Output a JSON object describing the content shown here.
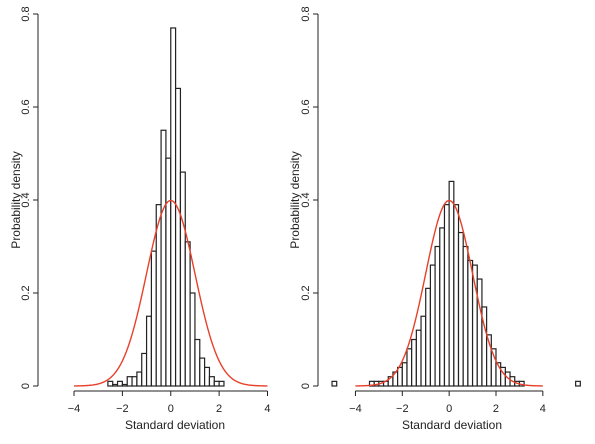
{
  "chart_data": [
    {
      "type": "bar",
      "xlabel": "Standard deviation",
      "ylabel": "Probability density",
      "xlim": [
        -5.2,
        4.6
      ],
      "ylim": [
        0,
        0.8
      ],
      "xticks": [
        -4,
        -2,
        0,
        2,
        4
      ],
      "yticks": [
        0,
        0.2,
        0.4,
        0.6,
        0.8
      ],
      "bin_width": 0.2,
      "bins": [
        {
          "x0": -2.6,
          "density": 0.01
        },
        {
          "x0": -2.4,
          "density": 0.0
        },
        {
          "x0": -2.2,
          "density": 0.01
        },
        {
          "x0": -2.0,
          "density": 0.0
        },
        {
          "x0": -1.8,
          "density": 0.02
        },
        {
          "x0": -1.6,
          "density": 0.02
        },
        {
          "x0": -1.4,
          "density": 0.03
        },
        {
          "x0": -1.2,
          "density": 0.07
        },
        {
          "x0": -1.0,
          "density": 0.15
        },
        {
          "x0": -0.8,
          "density": 0.29
        },
        {
          "x0": -0.6,
          "density": 0.39
        },
        {
          "x0": -0.4,
          "density": 0.55
        },
        {
          "x0": -0.2,
          "density": 0.49
        },
        {
          "x0": 0.0,
          "density": 0.77
        },
        {
          "x0": 0.2,
          "density": 0.64
        },
        {
          "x0": 0.4,
          "density": 0.46
        },
        {
          "x0": 0.6,
          "density": 0.31
        },
        {
          "x0": 0.8,
          "density": 0.2
        },
        {
          "x0": 1.0,
          "density": 0.1
        },
        {
          "x0": 1.2,
          "density": 0.06
        },
        {
          "x0": 1.4,
          "density": 0.04
        },
        {
          "x0": 1.6,
          "density": 0.02
        },
        {
          "x0": 1.8,
          "density": 0.01
        },
        {
          "x0": 2.0,
          "density": 0.01
        }
      ],
      "curve": {
        "type": "normal",
        "mean": 0,
        "sd": 1,
        "x_range": [
          -4,
          4
        ],
        "color": "#e8402a"
      }
    },
    {
      "type": "bar",
      "xlabel": "Standard deviation",
      "ylabel": "Probability density",
      "xlim": [
        -5.3,
        5.8
      ],
      "ylim": [
        0,
        0.8
      ],
      "xticks": [
        -4,
        -2,
        0,
        2,
        4
      ],
      "yticks": [
        0,
        0.2,
        0.4,
        0.6,
        0.8
      ],
      "bin_width": 0.2,
      "bins": [
        {
          "x0": -5.0,
          "density": 0.01
        },
        {
          "x0": -3.4,
          "density": 0.01
        },
        {
          "x0": -3.2,
          "density": 0.01
        },
        {
          "x0": -3.0,
          "density": 0.01
        },
        {
          "x0": -2.8,
          "density": 0.01
        },
        {
          "x0": -2.6,
          "density": 0.02
        },
        {
          "x0": -2.4,
          "density": 0.03
        },
        {
          "x0": -2.2,
          "density": 0.04
        },
        {
          "x0": -2.0,
          "density": 0.05
        },
        {
          "x0": -1.8,
          "density": 0.08
        },
        {
          "x0": -1.6,
          "density": 0.1
        },
        {
          "x0": -1.4,
          "density": 0.12
        },
        {
          "x0": -1.2,
          "density": 0.15
        },
        {
          "x0": -1.0,
          "density": 0.21
        },
        {
          "x0": -0.8,
          "density": 0.26
        },
        {
          "x0": -0.6,
          "density": 0.3
        },
        {
          "x0": -0.4,
          "density": 0.34
        },
        {
          "x0": -0.2,
          "density": 0.39
        },
        {
          "x0": 0.0,
          "density": 0.44
        },
        {
          "x0": 0.2,
          "density": 0.39
        },
        {
          "x0": 0.4,
          "density": 0.33
        },
        {
          "x0": 0.6,
          "density": 0.3
        },
        {
          "x0": 0.8,
          "density": 0.27
        },
        {
          "x0": 1.0,
          "density": 0.26
        },
        {
          "x0": 1.2,
          "density": 0.23
        },
        {
          "x0": 1.4,
          "density": 0.17
        },
        {
          "x0": 1.6,
          "density": 0.11
        },
        {
          "x0": 1.8,
          "density": 0.08
        },
        {
          "x0": 2.0,
          "density": 0.05
        },
        {
          "x0": 2.2,
          "density": 0.04
        },
        {
          "x0": 2.4,
          "density": 0.03
        },
        {
          "x0": 2.6,
          "density": 0.02
        },
        {
          "x0": 2.8,
          "density": 0.01
        },
        {
          "x0": 3.0,
          "density": 0.01
        },
        {
          "x0": 5.4,
          "density": 0.01
        }
      ],
      "curve": {
        "type": "normal",
        "mean": 0,
        "sd": 1,
        "x_range": [
          -4,
          4
        ],
        "color": "#e8402a"
      }
    }
  ]
}
